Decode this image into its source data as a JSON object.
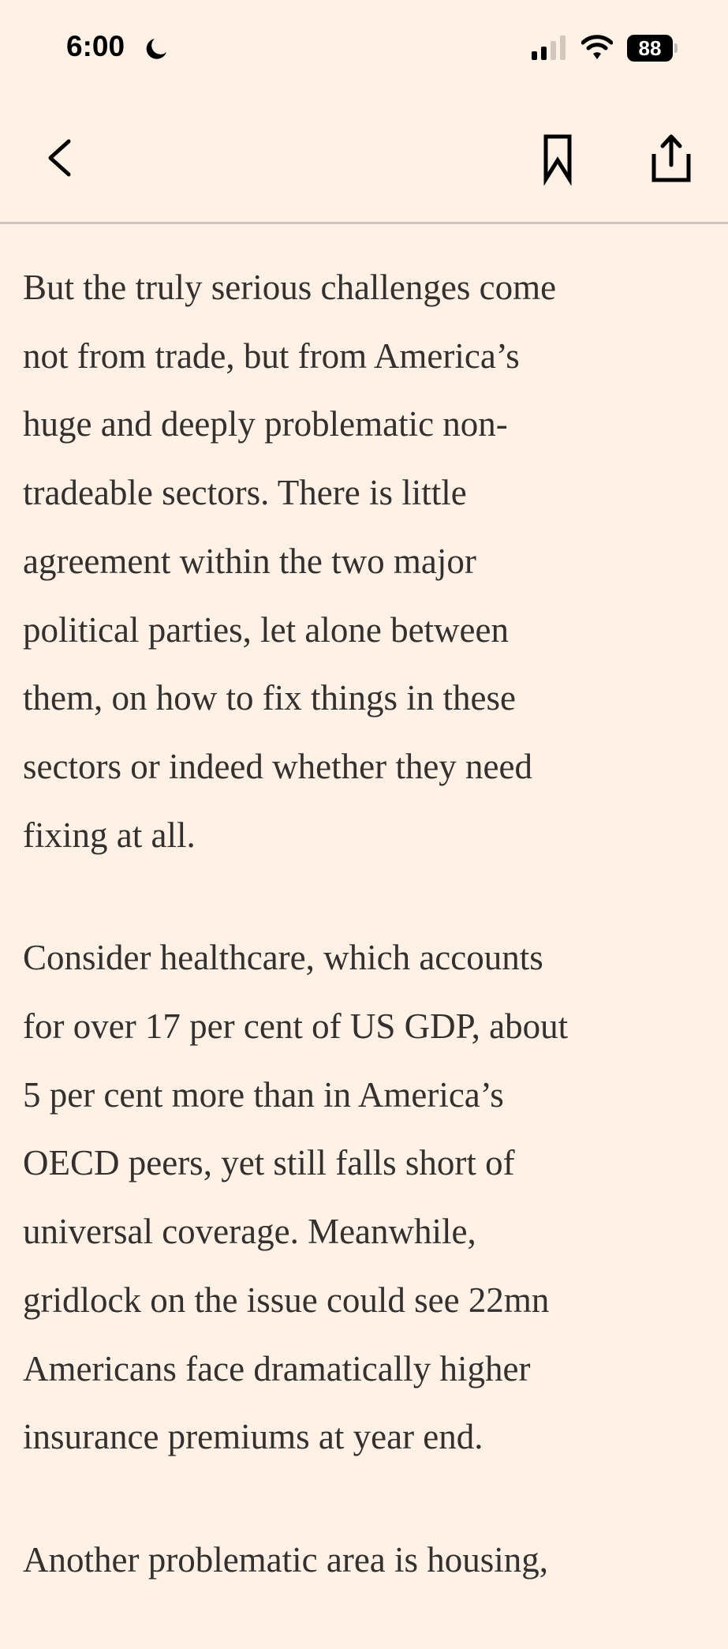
{
  "status_bar": {
    "time": "6:00",
    "battery": "88",
    "focus_icon": "moon-icon",
    "signal_bars": 2
  },
  "nav": {
    "back_icon": "chevron-left-icon",
    "bookmark_icon": "bookmark-icon",
    "share_icon": "share-icon"
  },
  "article": {
    "paragraphs": [
      {
        "lines": [
          "But the truly serious challenges come",
          "not from trade, but from America’s",
          "huge and deeply problematic non-",
          "tradeable sectors. There is little",
          "agreement within the two major",
          "political parties, let alone between",
          "them, on how to fix things in these",
          "sectors or indeed whether they need",
          "fixing at all."
        ]
      },
      {
        "lines": [
          "Consider healthcare, which accounts",
          "for over 17 per cent of US GDP, about",
          "5 per cent more than in America’s",
          "OECD peers, yet still falls short of",
          "universal coverage. Meanwhile,",
          "gridlock on the issue could see 22mn",
          "Americans face dramatically higher",
          "insurance premiums at year end."
        ]
      },
      {
        "lines": [
          "Another problematic area is housing,"
        ]
      }
    ]
  }
}
